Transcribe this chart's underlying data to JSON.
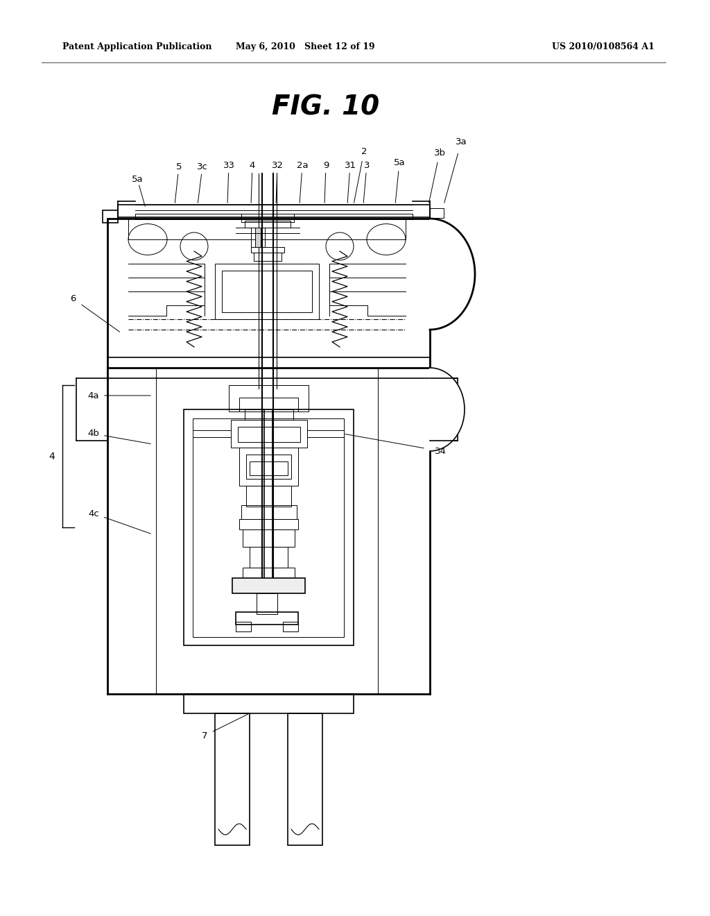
{
  "bg_color": "#ffffff",
  "line_color": "#000000",
  "header_left": "Patent Application Publication",
  "header_mid": "May 6, 2010   Sheet 12 of 19",
  "header_right": "US 2010/0108564 A1",
  "fig_title": "FIG. 10"
}
